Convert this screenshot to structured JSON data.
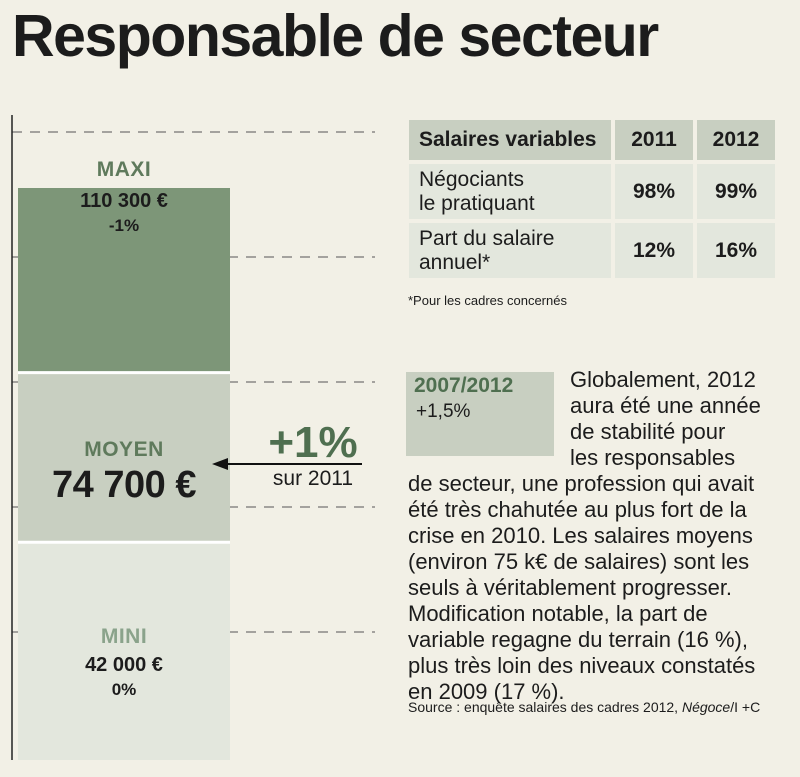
{
  "title": "Responsable de secteur",
  "chart_data": {
    "type": "bar",
    "categories": [
      "MINI",
      "MOYEN",
      "MAXI"
    ],
    "values": [
      42000,
      74700,
      110300
    ],
    "value_labels": [
      "42 000 €",
      "74 700 €",
      "110 300 €"
    ],
    "changes": [
      "0%",
      "+1 %",
      "-1%"
    ],
    "highlight": {
      "value": "+1%",
      "text": "sur 2011"
    },
    "colors": {
      "maxi": "#7d9678",
      "moyen": "#c8cfc1",
      "mini": "#e3e7dd"
    }
  },
  "table": {
    "headers": [
      "Salaires variables",
      "2011",
      "2012"
    ],
    "rows": [
      {
        "label": [
          "Négociants",
          "le pratiquant"
        ],
        "v2011": "98%",
        "v2012": "99%"
      },
      {
        "label": [
          "Part du salaire",
          "annuel*"
        ],
        "v2011": "12%",
        "v2012": "16%"
      }
    ],
    "footnote": "*Pour les cadres concernés"
  },
  "box": {
    "years": "2007/2012",
    "change": "+1,5%"
  },
  "paragraph": [
    "Globalement, 2012",
    "aura été une année",
    "de stabilité pour",
    "les responsables",
    "de secteur, une profession qui avait",
    "été très chahutée au plus fort de la",
    "crise en 2010. Les salaires moyens",
    "(environ 75 k€ de salaires) sont les",
    "seuls à véritablement progresser.",
    "Modification notable, la part de",
    "variable regagne du terrain (16 %),",
    "plus très loin des niveaux constatés",
    "en 2009 (17 %)."
  ],
  "source": {
    "prefix": "Source : enquête salaires des cadres 2012, ",
    "italic": "Négoce",
    "suffix": "/I +C"
  }
}
